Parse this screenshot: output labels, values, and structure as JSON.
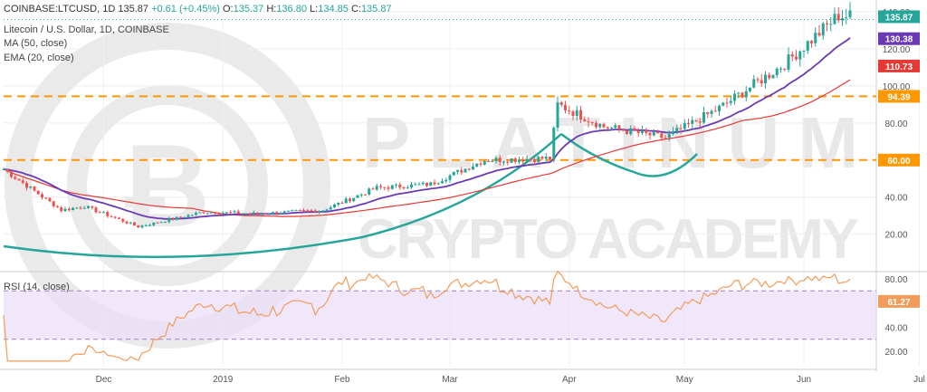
{
  "header": {
    "symbol_line": "COINBASE:LTCUSD, 1D",
    "last": "135.87",
    "change": "+0.61 (+0.45%)",
    "o_label": "O:",
    "o": "135.37",
    "h_label": "H:",
    "h": "136.80",
    "l_label": "L:",
    "l": "134.85",
    "c_label": "C:",
    "c": "135.87",
    "subtitle": "Litecoin / U.S. Dollar, 1D, COINBASE",
    "ma_label": "MA (50, close)",
    "ema_label": "EMA (20, close)",
    "rsi_label": "RSI (14, close)"
  },
  "watermark": {
    "line1": "PLATINUM",
    "line2": "CRYPTO ACADEMY"
  },
  "colors": {
    "ma": "#e53935",
    "ema": "#6a3ab5",
    "rsi": "#f39c5a",
    "bull": "#26a69a",
    "bear": "#ef5350",
    "level": "#ff9800",
    "pattern": "#26a69a",
    "rsi_band": "#e9ddfa"
  },
  "chart_data": [
    {
      "type": "candlestick",
      "title": "Litecoin / U.S. Dollar, 1D, COINBASE",
      "x_ticks": [
        "Dec",
        "2019",
        "Feb",
        "Mar",
        "Apr",
        "May",
        "Jun",
        "Jul"
      ],
      "y_ticks": [
        20,
        40,
        60,
        80,
        100,
        120,
        140
      ],
      "ylim": [
        14,
        150
      ],
      "horizontal_levels": [
        {
          "value": 94.39,
          "label": "94.39",
          "style": "dashed"
        },
        {
          "value": 60.0,
          "label": "60.00",
          "style": "dashed"
        }
      ],
      "price_labels": [
        {
          "value": 135.87,
          "label": "135.87",
          "color": "#26a69a"
        },
        {
          "value": 130.38,
          "label": "130.38",
          "color": "#6a3ab5"
        },
        {
          "value": 110.73,
          "label": "110.73",
          "color": "#e53935"
        }
      ],
      "close_series_monthly": [
        {
          "x": "Nov 10",
          "close": 55
        },
        {
          "x": "Nov 25",
          "close": 33
        },
        {
          "x": "Dec 1",
          "close": 35
        },
        {
          "x": "Dec 15",
          "close": 24
        },
        {
          "x": "Jan 1",
          "close": 32
        },
        {
          "x": "Jan 15",
          "close": 31
        },
        {
          "x": "Feb 1",
          "close": 33
        },
        {
          "x": "Feb 15",
          "close": 45
        },
        {
          "x": "Mar 1",
          "close": 47
        },
        {
          "x": "Mar 15",
          "close": 60
        },
        {
          "x": "Apr 1",
          "close": 61
        },
        {
          "x": "Apr 3",
          "close": 90
        },
        {
          "x": "Apr 15",
          "close": 78
        },
        {
          "x": "May 1",
          "close": 72
        },
        {
          "x": "May 15",
          "close": 88
        },
        {
          "x": "Jun 1",
          "close": 112
        },
        {
          "x": "Jun 15",
          "close": 138
        },
        {
          "x": "Jun 28",
          "close": 135.87
        }
      ],
      "series": [
        {
          "name": "MA (50, close)",
          "last": 110.73
        },
        {
          "name": "EMA (20, close)",
          "last": 130.38
        }
      ],
      "pattern": "cup and handle"
    },
    {
      "type": "line",
      "title": "RSI (14, close)",
      "y_ticks": [
        20,
        40,
        60,
        80
      ],
      "ylim": [
        10,
        90
      ],
      "bands": [
        30,
        70
      ],
      "last": 61.27,
      "last_label": "61.27"
    }
  ]
}
